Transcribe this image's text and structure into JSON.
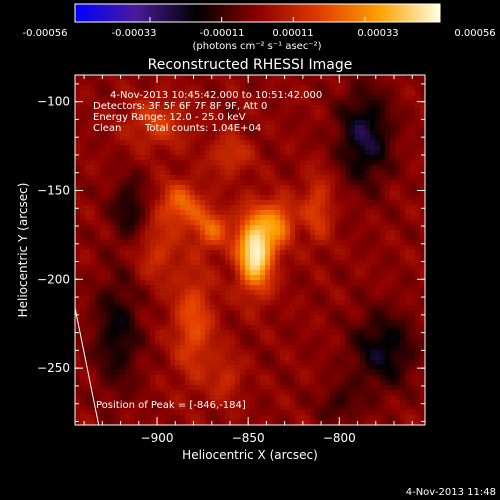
{
  "chart_data": {
    "type": "heatmap",
    "title": "Reconstructed RHESSI Image",
    "xlabel": "Heliocentric X (arcsec)",
    "ylabel": "Heliocentric Y (arcsec)",
    "xlim": [
      -945,
      -753
    ],
    "ylim": [
      -282,
      -85
    ],
    "x_ticks": [
      -900,
      -850,
      -800
    ],
    "y_ticks": [
      -100,
      -150,
      -200,
      -250
    ],
    "colorbar": {
      "ticks": [
        "-0.00056",
        "-0.00033",
        "-0.00011",
        "0.00011",
        "0.00033",
        "0.00056"
      ],
      "range": [
        -0.00056,
        0.00056
      ],
      "unit_label": "(photons cm⁻² s⁻¹ asec⁻²)",
      "colormap": [
        "#0000ff",
        "#4b1a99",
        "#000000",
        "#8a0000",
        "#e03a00",
        "#ffa000",
        "#ffffe0"
      ]
    },
    "annotations": {
      "time_range": "4-Nov-2013 10:45:42.000 to 10:51:42.000",
      "detectors": "Detectors: 3F 5F 6F 7F 8F 9F, Att 0",
      "energy": "Energy Range: 12.0 - 25.0 keV",
      "clean": "Clean",
      "total_counts": "Total counts: 1.04E+04",
      "peak": "Position of Peak = [-846,-184]"
    },
    "peak": {
      "x": -846,
      "y": -184
    },
    "limb_line": [
      [
        -945,
        -216
      ],
      [
        -932,
        -282
      ]
    ],
    "emission_sources": [
      {
        "x": -846,
        "y": -184,
        "sx": 7,
        "sy": 15,
        "amp": 1.0
      },
      {
        "x": -833,
        "y": -168,
        "sx": 6,
        "sy": 9,
        "amp": 0.5
      },
      {
        "x": -887,
        "y": -158,
        "sx": 9,
        "sy": 9,
        "amp": 0.45
      },
      {
        "x": -870,
        "y": -172,
        "sx": 7,
        "sy": 8,
        "amp": 0.42
      },
      {
        "x": -880,
        "y": -225,
        "sx": 8,
        "sy": 22,
        "amp": 0.38
      },
      {
        "x": -812,
        "y": -160,
        "sx": 6,
        "sy": 14,
        "amp": 0.32
      },
      {
        "x": -862,
        "y": -255,
        "sx": 6,
        "sy": 10,
        "amp": 0.22
      },
      {
        "x": -900,
        "y": -112,
        "sx": 12,
        "sy": 10,
        "amp": 0.3
      },
      {
        "x": -860,
        "y": -130,
        "sx": 8,
        "sy": 8,
        "amp": 0.28
      },
      {
        "x": -900,
        "y": -185,
        "sx": 8,
        "sy": 12,
        "amp": 0.25
      },
      {
        "x": -786,
        "y": -120,
        "sx": 10,
        "sy": 18,
        "amp": -0.45
      },
      {
        "x": -776,
        "y": -240,
        "sx": 12,
        "sy": 15,
        "amp": -0.38
      },
      {
        "x": -922,
        "y": -230,
        "sx": 9,
        "sy": 22,
        "amp": -0.32
      },
      {
        "x": -915,
        "y": -160,
        "sx": 7,
        "sy": 12,
        "amp": -0.3
      },
      {
        "x": -800,
        "y": -270,
        "sx": 8,
        "sy": 8,
        "amp": -0.2
      }
    ]
  },
  "footer": {
    "date": "4-Nov-2013 11:48"
  },
  "colors": {
    "background": "#000000",
    "text": "#ffffff"
  }
}
